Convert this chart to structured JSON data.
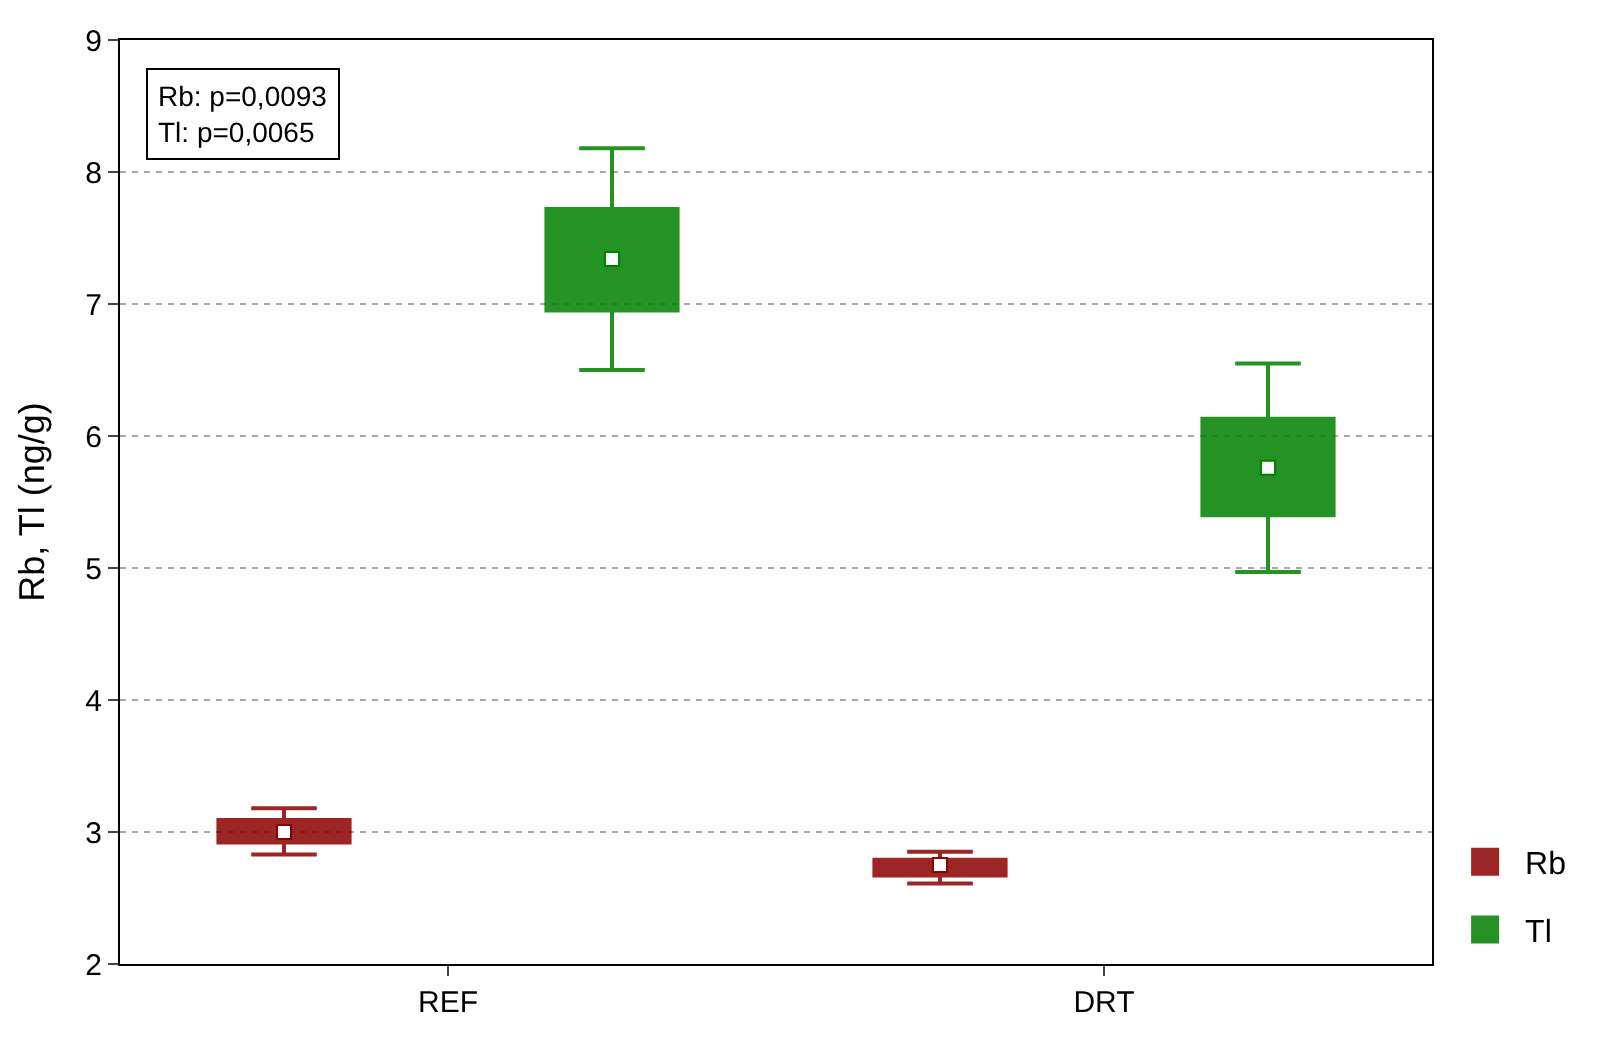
{
  "chart_data": {
    "type": "box",
    "ylabel": "Rb, Tl (ng/g)",
    "categories": [
      "REF",
      "DRT"
    ],
    "series": [
      {
        "name": "Rb",
        "color": "#8b0000",
        "boxes": [
          {
            "low": 2.83,
            "q1": 2.92,
            "median": 3.0,
            "q3": 3.09,
            "high": 3.18,
            "mean": 3.0
          },
          {
            "low": 2.61,
            "q1": 2.67,
            "median": 2.75,
            "q3": 2.79,
            "high": 2.85,
            "mean": 2.75
          }
        ]
      },
      {
        "name": "Tl",
        "color": "#008000",
        "boxes": [
          {
            "low": 6.5,
            "q1": 6.95,
            "median": 7.34,
            "q3": 7.72,
            "high": 8.18,
            "mean": 7.34
          },
          {
            "low": 4.97,
            "q1": 5.4,
            "median": 5.76,
            "q3": 6.13,
            "high": 6.55,
            "mean": 5.76
          }
        ]
      }
    ],
    "ylim": [
      2,
      9
    ],
    "yticks": [
      2,
      3,
      4,
      5,
      6,
      7,
      8,
      9
    ],
    "grid": "y",
    "legend": "bottom right",
    "marker": "square",
    "annotations": [
      "Rb: p=0,0093\nTl: p=0,0065"
    ]
  }
}
